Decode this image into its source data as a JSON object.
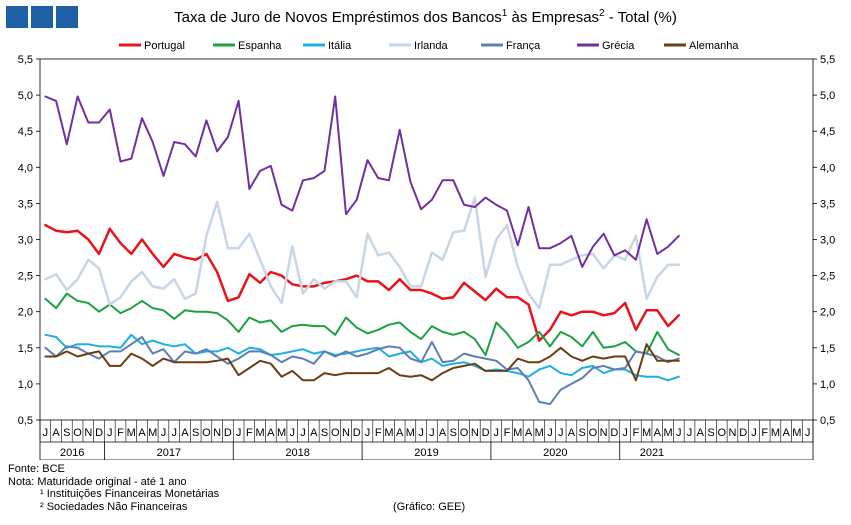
{
  "title_main": "Taxa de Juro de Novos Empréstimos dos Bancos",
  "title_sup1": "1",
  "title_mid": " às Empresas",
  "title_sup2": "2",
  "title_end": " - Total (%)",
  "notes": {
    "fonte": "Fonte: BCE",
    "nota": "Nota: Maturidade original - até 1 ano",
    "n1": "¹ Instituições Financeiras Monetárias",
    "n2": "² Sociedades Não Financeiras"
  },
  "credit": "(Gráfico: GEE)",
  "chart_data": {
    "type": "line",
    "title": "Taxa de Juro de Novos Empréstimos dos Bancos¹ às Empresas² - Total (%)",
    "ylim": [
      0.5,
      5.5
    ],
    "yticks": [
      "0,5",
      "1,0",
      "1,5",
      "2,0",
      "2,5",
      "3,0",
      "3,5",
      "4,0",
      "4,5",
      "5,0",
      "5,5"
    ],
    "month_labels": [
      "J",
      "A",
      "S",
      "O",
      "N",
      "D",
      "J",
      "F",
      "M",
      "A",
      "M",
      "J",
      "J",
      "A",
      "S",
      "O",
      "N",
      "D",
      "J",
      "F",
      "M",
      "A",
      "M",
      "J",
      "J",
      "A",
      "S",
      "O",
      "N",
      "D",
      "J",
      "F",
      "M",
      "A",
      "M",
      "J",
      "J",
      "A",
      "S",
      "O",
      "N",
      "D",
      "J",
      "F",
      "M",
      "A",
      "M",
      "J",
      "J",
      "A",
      "S",
      "O",
      "N",
      "D",
      "J",
      "F",
      "M",
      "A",
      "M",
      "J",
      "J",
      "A",
      "S",
      "O",
      "N",
      "D",
      "J",
      "F",
      "M",
      "A",
      "M",
      "J"
    ],
    "years": [
      {
        "label": "2016",
        "start": 0,
        "end": 6
      },
      {
        "label": "2017",
        "start": 6,
        "end": 18
      },
      {
        "label": "2018",
        "start": 18,
        "end": 30
      },
      {
        "label": "2019",
        "start": 30,
        "end": 42
      },
      {
        "label": "2020",
        "start": 42,
        "end": 54
      },
      {
        "label": "2021",
        "start": 54,
        "end": 60
      }
    ],
    "grid": false,
    "legend": "top",
    "series": [
      {
        "name": "Portugal",
        "color": "#e8141c",
        "width": 2.5,
        "values": [
          3.2,
          3.12,
          3.1,
          3.12,
          3.0,
          2.8,
          3.15,
          2.95,
          2.8,
          3.0,
          2.8,
          2.62,
          2.8,
          2.75,
          2.72,
          2.8,
          2.55,
          2.15,
          2.2,
          2.52,
          2.4,
          2.55,
          2.5,
          2.38,
          2.35,
          2.35,
          2.4,
          2.42,
          2.45,
          2.5,
          2.42,
          2.42,
          2.3,
          2.45,
          2.3,
          2.3,
          2.25,
          2.18,
          2.2,
          2.4,
          2.28,
          2.16,
          2.32,
          2.2,
          2.2,
          2.1,
          1.6,
          1.75,
          2.0,
          1.95,
          2.0,
          2.0,
          1.95,
          1.98,
          2.12,
          1.75,
          2.02,
          2.02,
          1.8,
          1.95
        ]
      },
      {
        "name": "Espanha",
        "color": "#1fa045",
        "width": 2,
        "values": [
          2.18,
          2.05,
          2.25,
          2.15,
          2.12,
          2.0,
          2.1,
          1.98,
          2.05,
          2.15,
          2.05,
          2.02,
          1.9,
          2.02,
          2.0,
          2.0,
          1.98,
          1.88,
          1.72,
          1.92,
          1.85,
          1.88,
          1.72,
          1.8,
          1.82,
          1.8,
          1.8,
          1.68,
          1.92,
          1.78,
          1.7,
          1.75,
          1.82,
          1.85,
          1.72,
          1.62,
          1.8,
          1.72,
          1.68,
          1.72,
          1.62,
          1.4,
          1.85,
          1.7,
          1.5,
          1.58,
          1.72,
          1.52,
          1.72,
          1.65,
          1.52,
          1.72,
          1.5,
          1.52,
          1.58,
          1.45,
          1.42,
          1.72,
          1.48,
          1.4
        ]
      },
      {
        "name": "Itália",
        "color": "#1cb0e4",
        "width": 2,
        "values": [
          1.68,
          1.65,
          1.5,
          1.55,
          1.55,
          1.52,
          1.52,
          1.5,
          1.68,
          1.55,
          1.6,
          1.55,
          1.52,
          1.55,
          1.42,
          1.45,
          1.45,
          1.5,
          1.42,
          1.5,
          1.48,
          1.4,
          1.42,
          1.45,
          1.48,
          1.42,
          1.45,
          1.4,
          1.42,
          1.45,
          1.48,
          1.5,
          1.38,
          1.42,
          1.45,
          1.3,
          1.35,
          1.25,
          1.28,
          1.3,
          1.25,
          1.18,
          1.2,
          1.18,
          1.15,
          1.1,
          1.2,
          1.25,
          1.15,
          1.12,
          1.22,
          1.25,
          1.15,
          1.2,
          1.2,
          1.12,
          1.1,
          1.1,
          1.05,
          1.1
        ]
      },
      {
        "name": "Irlanda",
        "color": "#c8d5e5",
        "width": 2.5,
        "values": [
          2.45,
          2.52,
          2.3,
          2.45,
          2.72,
          2.6,
          2.1,
          2.2,
          2.42,
          2.55,
          2.35,
          2.32,
          2.45,
          2.18,
          2.25,
          3.05,
          3.52,
          2.88,
          2.88,
          3.08,
          2.72,
          2.35,
          2.12,
          2.9,
          2.25,
          2.45,
          2.32,
          2.42,
          2.42,
          2.2,
          3.08,
          2.78,
          2.82,
          2.62,
          2.35,
          2.35,
          2.82,
          2.72,
          3.1,
          3.12,
          3.58,
          2.48,
          3.0,
          3.2,
          2.62,
          2.25,
          2.05,
          2.65,
          2.65,
          2.72,
          2.78,
          2.8,
          2.6,
          2.78,
          2.72,
          3.05,
          2.18,
          2.48,
          2.65,
          2.65
        ]
      },
      {
        "name": "França",
        "color": "#5d7fb4",
        "width": 2,
        "values": [
          1.5,
          1.38,
          1.52,
          1.5,
          1.42,
          1.35,
          1.45,
          1.45,
          1.55,
          1.65,
          1.42,
          1.48,
          1.3,
          1.45,
          1.42,
          1.48,
          1.38,
          1.28,
          1.35,
          1.45,
          1.45,
          1.4,
          1.3,
          1.38,
          1.35,
          1.28,
          1.45,
          1.38,
          1.45,
          1.38,
          1.42,
          1.48,
          1.52,
          1.5,
          1.35,
          1.3,
          1.58,
          1.3,
          1.32,
          1.42,
          1.38,
          1.35,
          1.32,
          1.2,
          1.22,
          1.05,
          0.75,
          0.72,
          0.92,
          1.0,
          1.08,
          1.22,
          1.25,
          1.2,
          1.22,
          1.45,
          1.42,
          1.38,
          1.3,
          1.35
        ]
      },
      {
        "name": "Grécia",
        "color": "#7030a0",
        "width": 2,
        "values": [
          4.98,
          4.92,
          4.32,
          4.98,
          4.62,
          4.62,
          4.8,
          4.08,
          4.12,
          4.68,
          4.35,
          3.88,
          4.35,
          4.32,
          4.15,
          4.65,
          4.22,
          4.42,
          4.92,
          3.7,
          3.95,
          4.02,
          3.48,
          3.4,
          3.82,
          3.85,
          3.95,
          4.98,
          3.35,
          3.55,
          4.1,
          3.85,
          3.82,
          4.52,
          3.8,
          3.42,
          3.55,
          3.82,
          3.82,
          3.48,
          3.45,
          3.58,
          3.48,
          3.4,
          2.92,
          3.45,
          2.88,
          2.88,
          2.95,
          3.05,
          2.62,
          2.9,
          3.08,
          2.78,
          2.85,
          2.72,
          3.28,
          2.8,
          2.9,
          3.05
        ]
      },
      {
        "name": "Alemanha",
        "color": "#6b3f12",
        "width": 2,
        "values": [
          1.38,
          1.38,
          1.45,
          1.38,
          1.42,
          1.45,
          1.25,
          1.25,
          1.42,
          1.35,
          1.25,
          1.35,
          1.3,
          1.3,
          1.3,
          1.3,
          1.32,
          1.35,
          1.12,
          1.22,
          1.32,
          1.28,
          1.1,
          1.18,
          1.05,
          1.05,
          1.15,
          1.12,
          1.15,
          1.15,
          1.15,
          1.15,
          1.22,
          1.12,
          1.1,
          1.12,
          1.05,
          1.15,
          1.22,
          1.25,
          1.28,
          1.18,
          1.18,
          1.18,
          1.35,
          1.3,
          1.3,
          1.38,
          1.5,
          1.38,
          1.32,
          1.38,
          1.35,
          1.38,
          1.38,
          1.05,
          1.55,
          1.32,
          1.32,
          1.32
        ]
      }
    ]
  }
}
